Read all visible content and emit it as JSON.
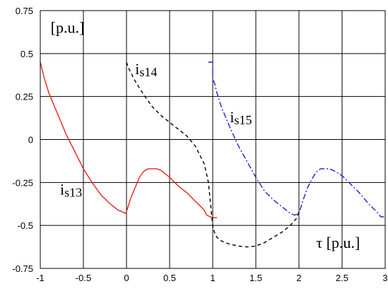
{
  "chart_data": {
    "type": "line",
    "title": "",
    "xlabel": "τ [p.u.]",
    "ylabel": "[p.u.]",
    "xlim": [
      -1,
      3
    ],
    "ylim": [
      -0.75,
      0.75
    ],
    "x_ticks": [
      -1,
      -0.5,
      0,
      0.5,
      1,
      1.5,
      2,
      2.5,
      3
    ],
    "x_tick_labels": [
      "-1",
      "-0.5",
      "0",
      "0.5",
      "1",
      "1.5",
      "2",
      "2.5",
      "3"
    ],
    "y_ticks": [
      0.75,
      0.5,
      0.25,
      0,
      -0.25,
      -0.5,
      -0.75
    ],
    "y_tick_labels": [
      "0.75",
      "0.5",
      "0.25",
      "0",
      "-0.25",
      "-0.5",
      "-0.75"
    ],
    "grid": true,
    "legend": "inline labels",
    "series": [
      {
        "name": "is13",
        "color": "#e8231d",
        "line_style": "solid",
        "label_pos": [
          -0.77,
          -0.32
        ],
        "x": [
          -1.0,
          -0.95,
          -0.9,
          -0.8,
          -0.7,
          -0.6,
          -0.5,
          -0.4,
          -0.3,
          -0.2,
          -0.1,
          -0.05,
          -0.02,
          0.0,
          0.05,
          0.1,
          0.15,
          0.2,
          0.25,
          0.3,
          0.35,
          0.4,
          0.5,
          0.6,
          0.7,
          0.8,
          0.9,
          0.93,
          0.97,
          1.0,
          1.05
        ],
        "y": [
          0.45,
          0.35,
          0.27,
          0.15,
          0.03,
          -0.07,
          -0.17,
          -0.25,
          -0.32,
          -0.37,
          -0.41,
          -0.42,
          -0.43,
          -0.42,
          -0.34,
          -0.28,
          -0.22,
          -0.185,
          -0.17,
          -0.17,
          -0.17,
          -0.18,
          -0.22,
          -0.27,
          -0.31,
          -0.36,
          -0.41,
          -0.44,
          -0.45,
          -0.455,
          -0.455
        ]
      },
      {
        "name": "is14",
        "color": "#000000",
        "line_style": "dashed",
        "label_pos": [
          0.1,
          0.38
        ],
        "x": [
          0.0,
          0.02,
          0.1,
          0.2,
          0.3,
          0.4,
          0.5,
          0.6,
          0.7,
          0.8,
          0.85,
          0.9,
          0.92,
          0.95,
          0.97,
          0.99,
          1.0,
          1.02,
          1.05,
          1.1,
          1.2,
          1.3,
          1.4,
          1.5,
          1.6,
          1.7,
          1.8,
          1.9,
          1.97,
          2.0
        ],
        "y": [
          0.45,
          0.42,
          0.34,
          0.26,
          0.19,
          0.14,
          0.1,
          0.06,
          0.02,
          -0.04,
          -0.09,
          -0.14,
          -0.18,
          -0.25,
          -0.35,
          -0.45,
          -0.5,
          -0.54,
          -0.57,
          -0.59,
          -0.61,
          -0.62,
          -0.625,
          -0.62,
          -0.6,
          -0.57,
          -0.54,
          -0.5,
          -0.46,
          -0.42
        ]
      },
      {
        "name": "is15",
        "color": "#1f1fd0",
        "line_style": "dashdot",
        "label_pos": [
          1.2,
          0.1
        ],
        "x": [
          0.95,
          1.0,
          1.0,
          1.02,
          1.05,
          1.1,
          1.2,
          1.3,
          1.4,
          1.5,
          1.6,
          1.7,
          1.8,
          1.9,
          1.95,
          2.0,
          2.05,
          2.1,
          2.15,
          2.2,
          2.25,
          2.3,
          2.35,
          2.4,
          2.5,
          2.6,
          2.7,
          2.8,
          2.9,
          2.95,
          3.0
        ],
        "y": [
          0.45,
          0.45,
          0.35,
          0.33,
          0.27,
          0.19,
          0.07,
          -0.04,
          -0.13,
          -0.22,
          -0.3,
          -0.35,
          -0.39,
          -0.43,
          -0.44,
          -0.43,
          -0.35,
          -0.28,
          -0.23,
          -0.19,
          -0.17,
          -0.17,
          -0.17,
          -0.18,
          -0.21,
          -0.26,
          -0.31,
          -0.37,
          -0.42,
          -0.45,
          -0.45
        ]
      }
    ],
    "annotations": [
      {
        "text": "[p.u.]",
        "x": -0.88,
        "y": 0.62,
        "anchor": "start"
      },
      {
        "text": "τ [p.u.]",
        "x": 2.2,
        "y": -0.63,
        "anchor": "start"
      }
    ]
  }
}
